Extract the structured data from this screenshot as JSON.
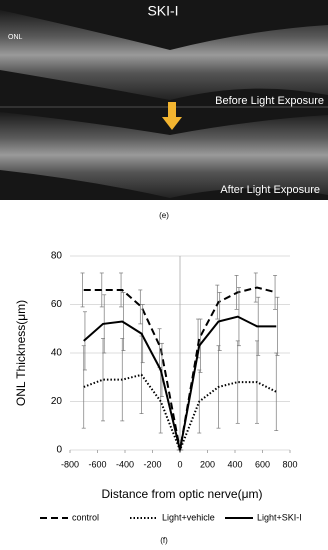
{
  "panel_e": {
    "title": "SKI-I",
    "layer_label": "ONL",
    "before_label": "Before Light Exposure",
    "after_label": "After Light Exposure",
    "caption": "(e)"
  },
  "chart_data": {
    "type": "line",
    "caption": "(f)",
    "x_label": "Distance from optic nerve(μm)",
    "y_label": "ONL Thickness(μm)",
    "x": [
      -700,
      -560,
      -420,
      -280,
      -140,
      0,
      140,
      280,
      420,
      560,
      700
    ],
    "series": [
      {
        "name": "control",
        "color": "#000000",
        "dash": "dashed",
        "values": [
          66,
          66,
          66,
          59,
          42,
          0,
          46,
          61,
          65,
          67,
          65
        ],
        "errors": [
          7,
          7,
          7,
          7,
          8,
          0,
          8,
          7,
          7,
          6,
          7
        ]
      },
      {
        "name": "Light+vehicle",
        "color": "#000000",
        "dash": "dotted",
        "values": [
          26,
          29,
          29,
          31,
          20,
          0,
          20,
          26,
          28,
          28,
          24
        ],
        "errors": [
          17,
          17,
          17,
          16,
          13,
          0,
          13,
          17,
          17,
          17,
          16
        ]
      },
      {
        "name": "Light+SKI-I",
        "color": "#000000",
        "dash": "solid",
        "values": [
          45,
          52,
          53,
          48,
          33,
          0,
          43,
          53,
          55,
          51,
          51
        ],
        "errors": [
          12,
          12,
          12,
          12,
          11,
          0,
          11,
          12,
          12,
          12,
          12
        ]
      }
    ],
    "xlim": [
      -800,
      800
    ],
    "xticks": [
      -800,
      -600,
      -400,
      -200,
      0,
      200,
      400,
      600,
      800
    ],
    "ylim": [
      0,
      80
    ],
    "yticks": [
      0,
      20,
      40,
      60,
      80
    ],
    "grid": true
  }
}
